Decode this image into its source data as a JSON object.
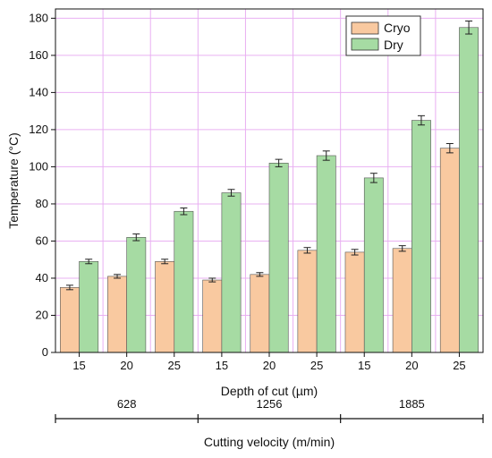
{
  "chart_data": {
    "type": "bar",
    "categories": [
      "15",
      "20",
      "25",
      "15",
      "20",
      "25",
      "15",
      "20",
      "25"
    ],
    "series": [
      {
        "name": "Cryo",
        "color": "#f9c9a0",
        "values": [
          35,
          41,
          49,
          39,
          42,
          55,
          54,
          56,
          110
        ],
        "errors": [
          1.2,
          1.0,
          1.2,
          1.0,
          1.0,
          1.5,
          1.5,
          1.5,
          2.5
        ]
      },
      {
        "name": "Dry",
        "color": "#a6dba3",
        "values": [
          49,
          62,
          76,
          86,
          102,
          106,
          94,
          125,
          175
        ],
        "errors": [
          1.2,
          1.8,
          1.8,
          1.8,
          2.0,
          2.5,
          2.5,
          2.5,
          3.5
        ]
      }
    ],
    "xlabel": "Depth of cut (µm)",
    "ylabel": "Temperature (°C)",
    "ylim": [
      0,
      185
    ],
    "yticks": [
      0,
      20,
      40,
      60,
      80,
      100,
      120,
      140,
      160,
      180
    ],
    "grid": true,
    "grid_color": "#e9b0f2",
    "legend_position": "top-right",
    "secondary_axis": {
      "title": "Cutting velocity (m/min)",
      "groups": [
        {
          "label": "628",
          "span": 3
        },
        {
          "label": "1256",
          "span": 3
        },
        {
          "label": "1885",
          "span": 3
        }
      ]
    }
  }
}
